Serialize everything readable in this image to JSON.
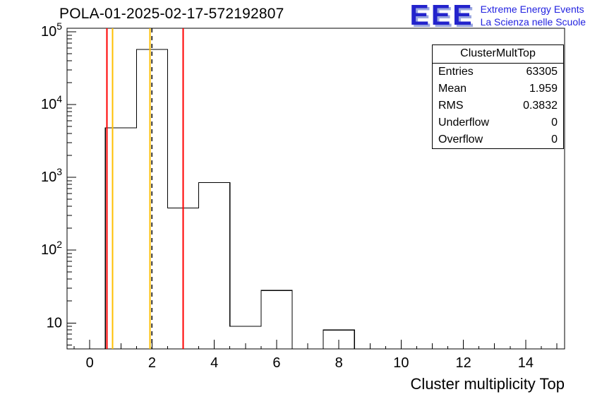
{
  "header": {
    "title": "POLA-01-2025-02-17-572192807"
  },
  "logo": {
    "acronym": "EEE",
    "line1": "Extreme Energy Events",
    "line2": "La Scienza nelle Scuole",
    "color": "#2323cc",
    "text_color": "#2222e0"
  },
  "stats": {
    "title": "ClusterMultTop",
    "rows": [
      {
        "label": "Entries",
        "value": "63305"
      },
      {
        "label": "Mean",
        "value": "1.959"
      },
      {
        "label": "RMS",
        "value": "0.3832"
      },
      {
        "label": "Underflow",
        "value": "0"
      },
      {
        "label": "Overflow",
        "value": "0"
      }
    ]
  },
  "chart_data": {
    "type": "bar",
    "title": "POLA-01-2025-02-17-572192807",
    "xlabel": "Cluster multiplicity Top",
    "ylabel": "",
    "ylog": true,
    "xlim": [
      -0.73,
      15.25
    ],
    "ylim": [
      4.4,
      112000
    ],
    "grid": false,
    "bin_width": 1,
    "bin_centers": [
      1,
      2,
      3,
      4,
      5,
      6,
      7,
      8
    ],
    "values": [
      4800,
      57230,
      380,
      850,
      9,
      28,
      0,
      8
    ],
    "x_ticks": [
      0,
      2,
      4,
      6,
      8,
      10,
      12,
      14
    ],
    "y_ticks": [
      {
        "value": 10,
        "label": "10",
        "exp": ""
      },
      {
        "value": 100,
        "label": "10",
        "exp": "2"
      },
      {
        "value": 1000,
        "label": "10",
        "exp": "3"
      },
      {
        "value": 10000,
        "label": "10",
        "exp": "4"
      },
      {
        "value": 100000,
        "label": "10",
        "exp": "5"
      }
    ],
    "line_color": "#000000",
    "marker_lines": [
      {
        "x": 0.55,
        "color": "#ff0000",
        "style": "solid"
      },
      {
        "x": 0.73,
        "color": "#ffbf00",
        "style": "solid"
      },
      {
        "x": 1.93,
        "color": "#ffbf00",
        "style": "solid"
      },
      {
        "x": 2.0,
        "color": "#000000",
        "style": "dashed"
      },
      {
        "x": 3.0,
        "color": "#ff0000",
        "style": "solid"
      }
    ]
  }
}
